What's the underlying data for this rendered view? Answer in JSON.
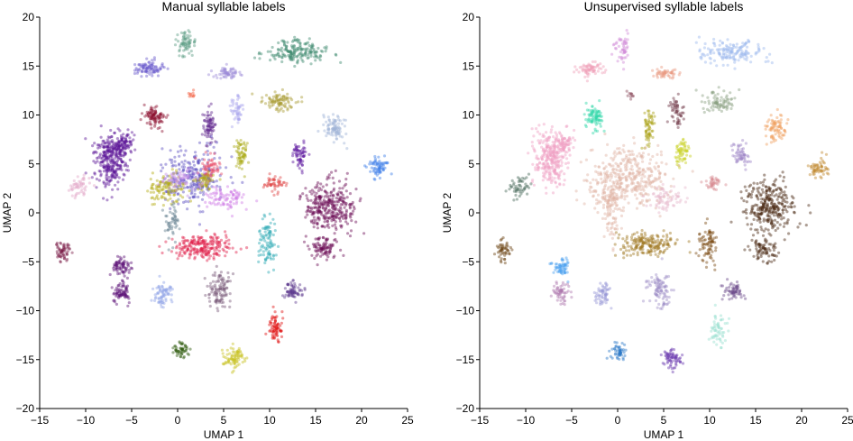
{
  "chart_data": [
    {
      "type": "scatter",
      "title": "Manual syllable labels",
      "xlabel": "UMAP 1",
      "ylabel": "UMAP 2",
      "xlim": [
        -15,
        25
      ],
      "ylim": [
        -20,
        20
      ],
      "xticks": [
        -15,
        -10,
        -5,
        0,
        5,
        10,
        15,
        20,
        25
      ],
      "yticks": [
        -20,
        -15,
        -10,
        -5,
        0,
        5,
        10,
        15,
        20
      ],
      "xtick_labels": [
        "−15",
        "−10",
        "−5",
        "0",
        "5",
        "10",
        "15",
        "20",
        "25"
      ],
      "ytick_labels": [
        "−20",
        "−15",
        "−10",
        "−5",
        "0",
        "5",
        "10",
        "15",
        "20"
      ],
      "grid": false,
      "legend": "none",
      "clusters": [
        {
          "cx": 0.8,
          "cy": 17.1,
          "sx": 0.5,
          "sy": 0.7,
          "n": 70,
          "color": "#5e9e84"
        },
        {
          "cx": 12.8,
          "cy": 16.5,
          "sx": 1.7,
          "sy": 0.6,
          "n": 180,
          "color": "#3f8a6e"
        },
        {
          "cx": -3.2,
          "cy": 14.8,
          "sx": 0.8,
          "sy": 0.35,
          "n": 90,
          "color": "#6a5acd"
        },
        {
          "cx": 5.4,
          "cy": 14.3,
          "sx": 0.7,
          "sy": 0.3,
          "n": 60,
          "color": "#9b8ad8"
        },
        {
          "cx": 1.5,
          "cy": 12.1,
          "sx": 0.2,
          "sy": 0.25,
          "n": 10,
          "color": "#f25c3c"
        },
        {
          "cx": 11.2,
          "cy": 11.3,
          "sx": 1.0,
          "sy": 0.5,
          "n": 90,
          "color": "#a89b32"
        },
        {
          "cx": -2.5,
          "cy": 9.8,
          "sx": 0.5,
          "sy": 0.6,
          "n": 90,
          "color": "#8b0f2e"
        },
        {
          "cx": 6.4,
          "cy": 10.4,
          "sx": 0.4,
          "sy": 0.7,
          "n": 50,
          "color": "#aaa6ee"
        },
        {
          "cx": 3.4,
          "cy": 8.8,
          "sx": 0.3,
          "sy": 0.9,
          "n": 70,
          "color": "#5b1f8a"
        },
        {
          "cx": 17.2,
          "cy": 8.7,
          "sx": 0.6,
          "sy": 0.7,
          "n": 90,
          "color": "#9fb3d6"
        },
        {
          "cx": -7.4,
          "cy": 5.5,
          "sx": 0.9,
          "sy": 1.5,
          "n": 300,
          "color": "#5a1496"
        },
        {
          "cx": -5.8,
          "cy": 7.0,
          "sx": 0.6,
          "sy": 0.6,
          "n": 80,
          "color": "#5a1496"
        },
        {
          "cx": 7.0,
          "cy": 6.1,
          "sx": 0.4,
          "sy": 0.8,
          "n": 60,
          "color": "#a8a812"
        },
        {
          "cx": 13.3,
          "cy": 6.0,
          "sx": 0.4,
          "sy": 0.6,
          "n": 60,
          "color": "#5a149e"
        },
        {
          "cx": 21.8,
          "cy": 4.7,
          "sx": 0.5,
          "sy": 0.5,
          "n": 70,
          "color": "#3e7ee8"
        },
        {
          "cx": -10.5,
          "cy": 2.7,
          "sx": 0.6,
          "sy": 0.6,
          "n": 50,
          "color": "#e3a6c8"
        },
        {
          "cx": 1.5,
          "cy": 3.7,
          "sx": 1.6,
          "sy": 1.4,
          "n": 260,
          "color": "#5b4ec1"
        },
        {
          "cx": 3.6,
          "cy": 4.6,
          "sx": 0.6,
          "sy": 0.6,
          "n": 60,
          "color": "#e8506a"
        },
        {
          "cx": -1.3,
          "cy": 2.4,
          "sx": 1.0,
          "sy": 0.8,
          "n": 110,
          "color": "#b4aa12"
        },
        {
          "cx": 3.0,
          "cy": 3.3,
          "sx": 0.5,
          "sy": 0.5,
          "n": 50,
          "color": "#b4aa12"
        },
        {
          "cx": 0.3,
          "cy": 3.4,
          "sx": 1.2,
          "sy": 0.5,
          "n": 70,
          "color": "#c792e6"
        },
        {
          "cx": 5.2,
          "cy": 1.5,
          "sx": 1.1,
          "sy": 0.6,
          "n": 90,
          "color": "#d17ee6"
        },
        {
          "cx": 10.4,
          "cy": 3.0,
          "sx": 0.6,
          "sy": 0.4,
          "n": 50,
          "color": "#e04848"
        },
        {
          "cx": -0.6,
          "cy": -0.8,
          "sx": 0.4,
          "sy": 1.0,
          "n": 50,
          "color": "#5f7d8c"
        },
        {
          "cx": 16.5,
          "cy": 0.6,
          "sx": 1.4,
          "sy": 1.2,
          "n": 320,
          "color": "#6b0a54"
        },
        {
          "cx": 15.8,
          "cy": -3.6,
          "sx": 0.8,
          "sy": 0.6,
          "n": 90,
          "color": "#6b0a54"
        },
        {
          "cx": 2.8,
          "cy": -3.5,
          "sx": 1.6,
          "sy": 0.6,
          "n": 220,
          "color": "#e0204a"
        },
        {
          "cx": 9.8,
          "cy": -3.2,
          "sx": 0.5,
          "sy": 1.2,
          "n": 90,
          "color": "#2aa8b4"
        },
        {
          "cx": -12.4,
          "cy": -3.9,
          "sx": 0.4,
          "sy": 0.5,
          "n": 60,
          "color": "#7d1e4a"
        },
        {
          "cx": -6.1,
          "cy": -5.6,
          "sx": 0.5,
          "sy": 0.5,
          "n": 70,
          "color": "#5a0f76"
        },
        {
          "cx": -6.2,
          "cy": -8.1,
          "sx": 0.5,
          "sy": 0.5,
          "n": 70,
          "color": "#5a0f76"
        },
        {
          "cx": -1.5,
          "cy": -8.4,
          "sx": 0.5,
          "sy": 0.7,
          "n": 70,
          "color": "#8fa2e6"
        },
        {
          "cx": 4.5,
          "cy": -7.8,
          "sx": 0.6,
          "sy": 0.9,
          "n": 110,
          "color": "#7a5a7a"
        },
        {
          "cx": 12.6,
          "cy": -7.9,
          "sx": 0.5,
          "sy": 0.5,
          "n": 70,
          "color": "#5e3a8e"
        },
        {
          "cx": 10.6,
          "cy": -11.8,
          "sx": 0.4,
          "sy": 0.7,
          "n": 70,
          "color": "#e01010"
        },
        {
          "cx": 0.3,
          "cy": -13.9,
          "sx": 0.4,
          "sy": 0.5,
          "n": 50,
          "color": "#2e5c0e"
        },
        {
          "cx": 6.1,
          "cy": -14.8,
          "sx": 0.6,
          "sy": 0.5,
          "n": 80,
          "color": "#c8c020"
        }
      ]
    },
    {
      "type": "scatter",
      "title": "Unsupervised syllable labels",
      "xlabel": "UMAP 1",
      "ylabel": "UMAP 2",
      "xlim": [
        -15,
        25
      ],
      "ylim": [
        -20,
        20
      ],
      "xticks": [
        -15,
        -10,
        -5,
        0,
        5,
        10,
        15,
        20,
        25
      ],
      "yticks": [
        -20,
        -15,
        -10,
        -5,
        0,
        5,
        10,
        15,
        20
      ],
      "xtick_labels": [
        "−15",
        "−10",
        "−5",
        "0",
        "5",
        "10",
        "15",
        "20",
        "25"
      ],
      "ytick_labels": [
        "−20",
        "−15",
        "−10",
        "−5",
        "0",
        "5",
        "10",
        "15",
        "20"
      ],
      "grid": false,
      "legend": "none",
      "clusters": [
        {
          "cx": 0.6,
          "cy": 16.8,
          "sx": 0.4,
          "sy": 0.8,
          "n": 50,
          "color": "#d18ad8"
        },
        {
          "cx": 12.4,
          "cy": 16.5,
          "sx": 1.6,
          "sy": 0.6,
          "n": 160,
          "color": "#9bb8ee"
        },
        {
          "cx": -3.2,
          "cy": 14.7,
          "sx": 0.8,
          "sy": 0.35,
          "n": 70,
          "color": "#f0a0b8"
        },
        {
          "cx": 5.3,
          "cy": 14.3,
          "sx": 0.7,
          "sy": 0.3,
          "n": 50,
          "color": "#e89880"
        },
        {
          "cx": 1.5,
          "cy": 12.1,
          "sx": 0.2,
          "sy": 0.25,
          "n": 10,
          "color": "#8a4a5a"
        },
        {
          "cx": 11.2,
          "cy": 11.3,
          "sx": 1.0,
          "sy": 0.5,
          "n": 80,
          "color": "#8aa080"
        },
        {
          "cx": -2.5,
          "cy": 9.8,
          "sx": 0.5,
          "sy": 0.6,
          "n": 80,
          "color": "#2ed8a8"
        },
        {
          "cx": 6.4,
          "cy": 10.4,
          "sx": 0.4,
          "sy": 0.7,
          "n": 50,
          "color": "#6a3040"
        },
        {
          "cx": 3.4,
          "cy": 8.8,
          "sx": 0.3,
          "sy": 0.9,
          "n": 60,
          "color": "#a8a012"
        },
        {
          "cx": 17.2,
          "cy": 8.7,
          "sx": 0.6,
          "sy": 0.7,
          "n": 80,
          "color": "#f0a060"
        },
        {
          "cx": -7.4,
          "cy": 5.5,
          "sx": 0.9,
          "sy": 1.5,
          "n": 280,
          "color": "#f0a0c4"
        },
        {
          "cx": -5.8,
          "cy": 7.0,
          "sx": 0.6,
          "sy": 0.6,
          "n": 70,
          "color": "#f0a0c4"
        },
        {
          "cx": 7.0,
          "cy": 6.1,
          "sx": 0.4,
          "sy": 0.8,
          "n": 60,
          "color": "#c8d020"
        },
        {
          "cx": 13.3,
          "cy": 6.0,
          "sx": 0.4,
          "sy": 0.6,
          "n": 60,
          "color": "#a088c8"
        },
        {
          "cx": 21.8,
          "cy": 4.7,
          "sx": 0.5,
          "sy": 0.5,
          "n": 60,
          "color": "#c08a30"
        },
        {
          "cx": -10.8,
          "cy": 2.7,
          "sx": 0.6,
          "sy": 0.7,
          "n": 50,
          "color": "#4a6a5a"
        },
        {
          "cx": 1.3,
          "cy": 3.6,
          "sx": 2.2,
          "sy": 1.6,
          "n": 380,
          "color": "#e0b4a4"
        },
        {
          "cx": -1.0,
          "cy": 1.5,
          "sx": 0.9,
          "sy": 0.8,
          "n": 80,
          "color": "#e0b4a4"
        },
        {
          "cx": 5.2,
          "cy": 1.5,
          "sx": 1.1,
          "sy": 0.6,
          "n": 70,
          "color": "#e6b8cc"
        },
        {
          "cx": 10.4,
          "cy": 3.0,
          "sx": 0.5,
          "sy": 0.4,
          "n": 40,
          "color": "#d88a90"
        },
        {
          "cx": -0.6,
          "cy": -0.8,
          "sx": 0.4,
          "sy": 1.0,
          "n": 40,
          "color": "#e0b4a4"
        },
        {
          "cx": 16.5,
          "cy": 0.6,
          "sx": 1.4,
          "sy": 1.2,
          "n": 300,
          "color": "#4a2812"
        },
        {
          "cx": 15.8,
          "cy": -3.6,
          "sx": 0.8,
          "sy": 0.6,
          "n": 80,
          "color": "#4a2812"
        },
        {
          "cx": 3.2,
          "cy": -3.3,
          "sx": 1.5,
          "sy": 0.6,
          "n": 190,
          "color": "#a07822"
        },
        {
          "cx": 9.8,
          "cy": -3.2,
          "sx": 0.5,
          "sy": 1.1,
          "n": 80,
          "color": "#7a4a12"
        },
        {
          "cx": -12.4,
          "cy": -3.9,
          "sx": 0.4,
          "sy": 0.5,
          "n": 50,
          "color": "#6a4212"
        },
        {
          "cx": -6.1,
          "cy": -5.6,
          "sx": 0.5,
          "sy": 0.5,
          "n": 60,
          "color": "#4aa0f0"
        },
        {
          "cx": -6.2,
          "cy": -8.1,
          "sx": 0.5,
          "sy": 0.5,
          "n": 60,
          "color": "#b07ab0"
        },
        {
          "cx": -1.5,
          "cy": -8.4,
          "sx": 0.5,
          "sy": 0.7,
          "n": 60,
          "color": "#9a9ad8"
        },
        {
          "cx": 4.5,
          "cy": -7.8,
          "sx": 0.6,
          "sy": 0.9,
          "n": 100,
          "color": "#a090c8"
        },
        {
          "cx": 12.6,
          "cy": -7.9,
          "sx": 0.5,
          "sy": 0.5,
          "n": 60,
          "color": "#6a4a8a"
        },
        {
          "cx": 10.9,
          "cy": -11.9,
          "sx": 0.5,
          "sy": 0.7,
          "n": 60,
          "color": "#9ae0d0"
        },
        {
          "cx": 0.1,
          "cy": -14.1,
          "sx": 0.4,
          "sy": 0.5,
          "n": 50,
          "color": "#2a78c8"
        },
        {
          "cx": 5.9,
          "cy": -14.9,
          "sx": 0.6,
          "sy": 0.5,
          "n": 70,
          "color": "#6a3ab0"
        }
      ]
    }
  ]
}
